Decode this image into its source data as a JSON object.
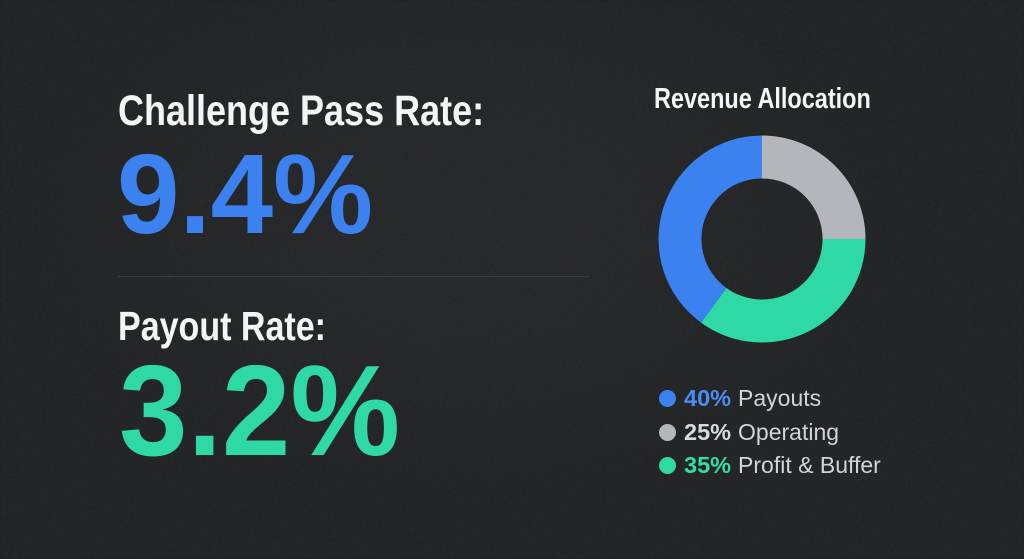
{
  "palette": {
    "background": "#1d1e20",
    "heading_text": "#f4f5f6",
    "blue": "#3b82f0",
    "teal": "#2ed9a6",
    "gray": "#b3b6ba",
    "legend_label_text": "#d2d4d7",
    "divider": "#3c3d40"
  },
  "stats": [
    {
      "label": "Challenge Pass Rate:",
      "value": "9.4%",
      "color": "#3b82f0"
    },
    {
      "label": "Payout Rate:",
      "value": "3.2%",
      "color": "#2ed9a6"
    }
  ],
  "chart_data": {
    "type": "pie",
    "title": "Revenue Allocation",
    "donut": true,
    "segments": [
      {
        "label": "Payouts",
        "value": 40,
        "pct_label": "40%",
        "color": "#3b82f0"
      },
      {
        "label": "Operating",
        "value": 25,
        "pct_label": "25%",
        "color": "#b3b6ba"
      },
      {
        "label": "Profit & Buffer",
        "value": 35,
        "pct_label": "35%",
        "color": "#2ed9a6"
      }
    ],
    "layout": {
      "start_angle_deg": 0,
      "clockwise": true,
      "draw_order": [
        1,
        2,
        0
      ],
      "inner_radius_ratio": 0.585,
      "legend_position": "bottom",
      "legend_pct_colors": [
        "#4a8df2",
        "#d8dadd",
        "#35dcab"
      ]
    }
  }
}
